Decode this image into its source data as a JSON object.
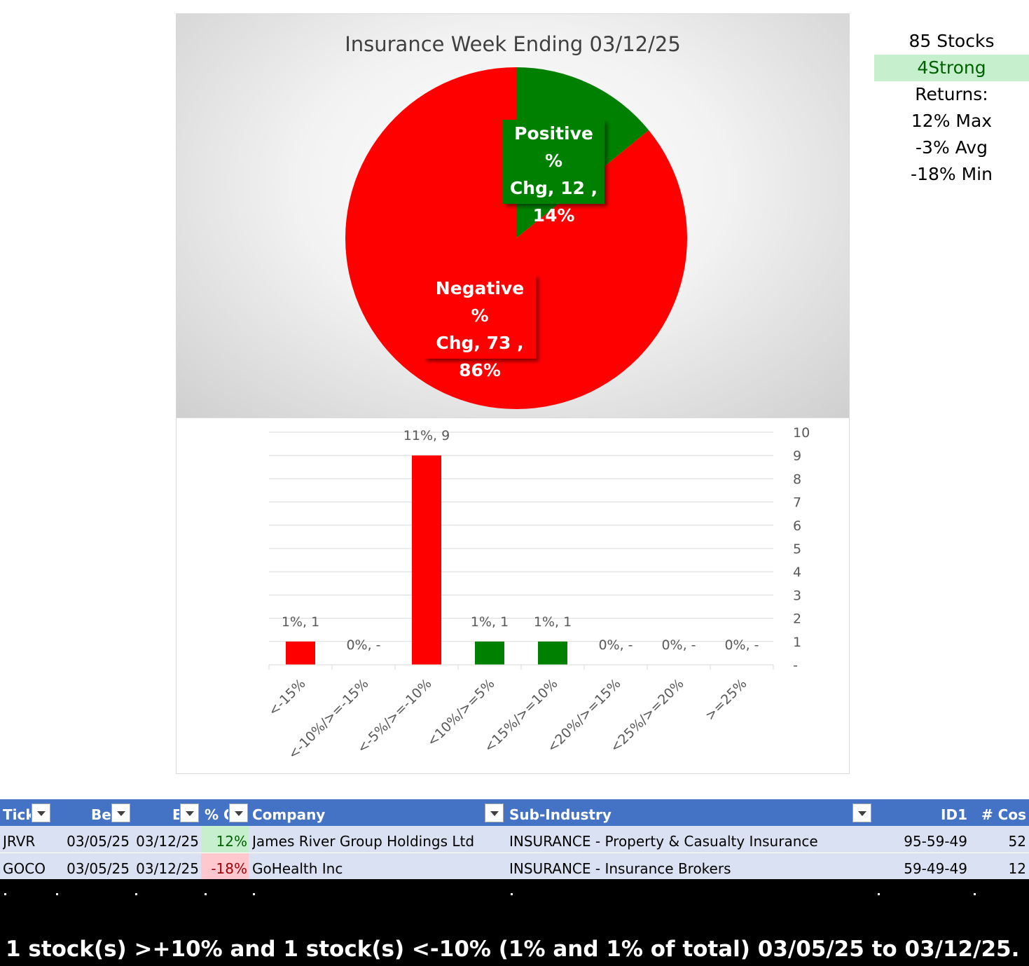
{
  "chart_data": [
    {
      "type": "pie",
      "title": "Insurance Week Ending 03/12/25",
      "slices": [
        {
          "name": "Positive % Chg",
          "value": 12,
          "percent": "14%",
          "color": "#008000",
          "label_lines": [
            "Positive %",
            "Chg,  12 ,",
            "14%"
          ]
        },
        {
          "name": "Negative % Chg",
          "value": 73,
          "percent": "86%",
          "color": "#ff0000",
          "label_lines": [
            "Negative %",
            "Chg,  73 ,",
            "86%"
          ]
        }
      ]
    },
    {
      "type": "bar",
      "categories": [
        "<-15%",
        "<-10%/>=-15%",
        "<-5%/>=-10%",
        "<10%/>=5%",
        "<15%/>=10%",
        "<20%/>=15%",
        "<25%/>=20%",
        ">=25%"
      ],
      "values": [
        1,
        0,
        9,
        1,
        1,
        0,
        0,
        0
      ],
      "data_labels": [
        "1%,  1",
        "0%,  -",
        "11%,  9",
        "1%,  1",
        "1%,  1",
        "0%,  -",
        "0%,  -",
        "0%,  -"
      ],
      "colors": [
        "#ff0000",
        "#ff0000",
        "#ff0000",
        "#008000",
        "#008000",
        "#008000",
        "#008000",
        "#008000"
      ],
      "ylim": [
        0,
        10
      ],
      "y_ticks": [
        "-",
        "1",
        "2",
        "3",
        "4",
        "5",
        "6",
        "7",
        "8",
        "9",
        "10"
      ],
      "y_axis_side": "right",
      "grid": true
    }
  ],
  "side_panel": {
    "stocks": "85 Stocks",
    "strong": "4Strong",
    "returns_label": "Returns:",
    "max": "12% Max",
    "avg": "-3% Avg",
    "min": "-18% Min"
  },
  "table": {
    "headers": [
      "Tick",
      "Be",
      "E",
      "% C",
      "Company",
      "Sub-Industry",
      "ID1",
      "# Cos"
    ],
    "rows": [
      {
        "ticker": "JRVR",
        "begin": "03/05/25",
        "end": "03/12/25",
        "pct": "12%",
        "company": "James River Group Holdings Ltd",
        "sub_industry": "INSURANCE - Property & Casualty Insurance",
        "id1": "95-59-49",
        "cos": "52"
      },
      {
        "ticker": "GOCO",
        "begin": "03/05/25",
        "end": "03/12/25",
        "pct": "-18%",
        "company": "GoHealth Inc",
        "sub_industry": "INSURANCE - Insurance Brokers",
        "id1": "59-49-49",
        "cos": "12"
      }
    ]
  },
  "footer": {
    "summary": "1 stock(s) >+10% and 1 stock(s) <-10% (1% and 1% of total) 03/05/25 to 03/12/25."
  }
}
